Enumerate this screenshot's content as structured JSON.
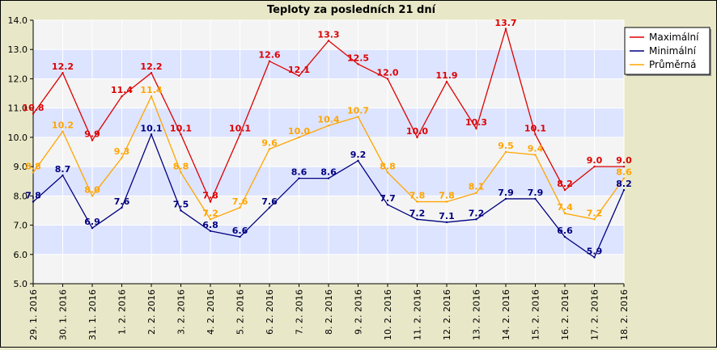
{
  "chart_data": {
    "type": "line",
    "title": "Teploty za posledních 21 dní",
    "categories": [
      "29. 1. 2016",
      "30. 1. 2016",
      "31. 1. 2016",
      "1. 2. 2016",
      "2. 2. 2016",
      "3. 2. 2016",
      "4. 2. 2016",
      "5. 2. 2016",
      "6. 2. 2016",
      "7. 2. 2016",
      "8. 2. 2016",
      "9. 2. 2016",
      "10. 2. 2016",
      "11. 2. 2016",
      "12. 2. 2016",
      "13. 2. 2016",
      "14. 2. 2016",
      "15. 2. 2016",
      "16. 2. 2016",
      "17. 2. 2016",
      "18. 2. 2016"
    ],
    "ylim": [
      5.0,
      14.0
    ],
    "yticks": [
      "5.0",
      "6.0",
      "7.0",
      "8.0",
      "9.0",
      "10.0",
      "11.0",
      "12.0",
      "13.0",
      "14.0"
    ],
    "legend_position": "top-right",
    "series": [
      {
        "name": "Maximální",
        "color": "#dd0000",
        "labelColor": "#dd0000",
        "values": [
          10.8,
          12.2,
          9.9,
          11.4,
          12.2,
          10.1,
          7.8,
          10.1,
          12.6,
          12.1,
          13.3,
          12.5,
          12.0,
          10.0,
          11.9,
          10.3,
          13.7,
          10.1,
          8.2,
          9.0,
          9.0
        ]
      },
      {
        "name": "Minimální",
        "color": "#000080",
        "labelColor": "#000080",
        "values": [
          7.8,
          8.7,
          6.9,
          7.6,
          10.1,
          7.5,
          6.8,
          6.6,
          7.6,
          8.6,
          8.6,
          9.2,
          7.7,
          7.2,
          7.1,
          7.2,
          7.9,
          7.9,
          6.6,
          5.9,
          8.2
        ]
      },
      {
        "name": "Průměrná",
        "color": "#ffa500",
        "labelColor": "#ffa500",
        "values": [
          8.8,
          10.2,
          8.0,
          9.3,
          11.4,
          8.8,
          7.2,
          7.6,
          9.6,
          10.0,
          10.4,
          10.7,
          8.8,
          7.8,
          7.8,
          8.1,
          9.5,
          9.4,
          7.4,
          7.2,
          8.6
        ]
      }
    ]
  }
}
